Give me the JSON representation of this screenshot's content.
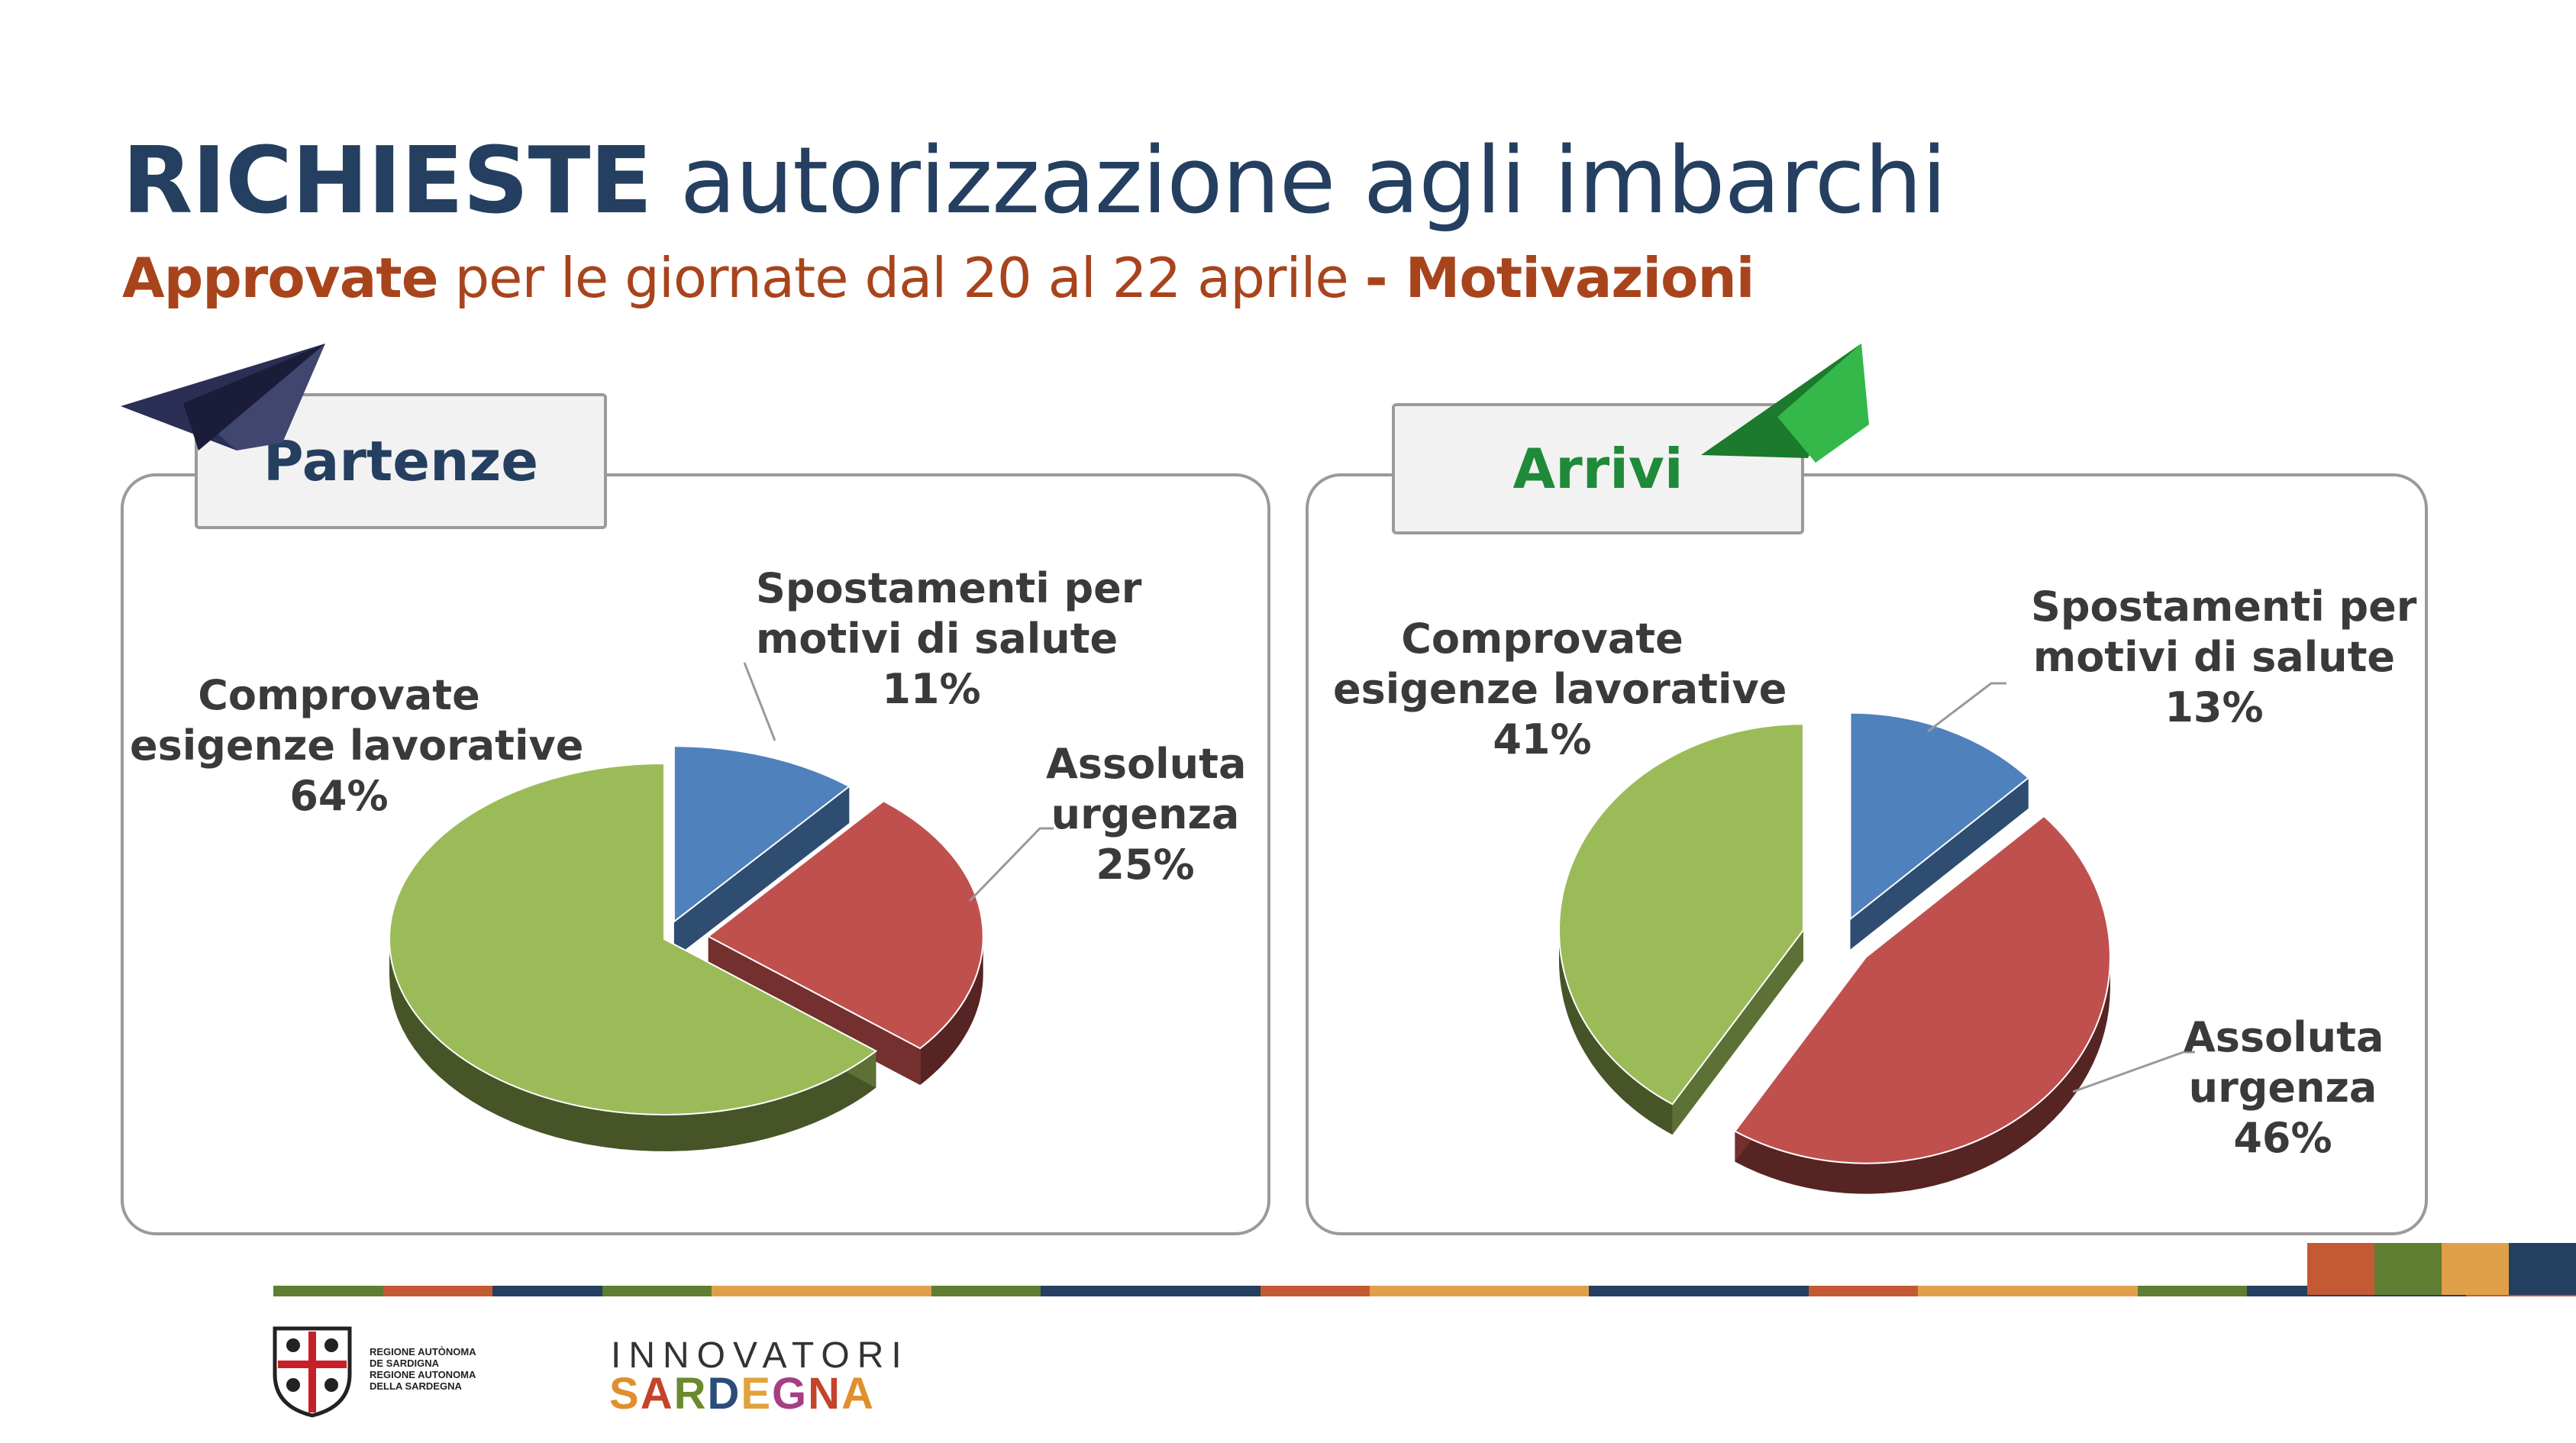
{
  "header": {
    "title_bold": "RICHIESTE",
    "title_rest": "autorizzazione agli imbarchi",
    "subtitle_bold1": "Approvate",
    "subtitle_mid": "per le giornate dal 20 al 22 aprile",
    "subtitle_bold2": "- Motivazioni"
  },
  "colors": {
    "title": "#243f60",
    "subtitle": "#a8441c",
    "blue": "#4f81bd",
    "red": "#c0504d",
    "green": "#9bbb59",
    "arrivi_green": "#1e8a3a"
  },
  "icons": {
    "left": "paper-plane-navy-icon",
    "right": "paper-plane-green-icon"
  },
  "chart_data": [
    {
      "type": "pie",
      "title": "Partenze",
      "categories": [
        "Spostamenti per motivi di salute",
        "Assoluta urgenza",
        "Comprovate esigenze lavorative"
      ],
      "values": [
        11,
        25,
        64
      ],
      "labels": [
        {
          "line1": "Spostamenti per",
          "line2": "motivi di salute",
          "pct": "11%"
        },
        {
          "line1": "Assoluta",
          "line2": "urgenza",
          "pct": "25%"
        },
        {
          "line1": "Comprovate",
          "line2": "esigenze lavorative",
          "pct": "64%"
        }
      ],
      "colors": [
        "#4f81bd",
        "#c0504d",
        "#9bbb59"
      ]
    },
    {
      "type": "pie",
      "title": "Arrivi",
      "categories": [
        "Spostamenti per motivi di salute",
        "Assoluta urgenza",
        "Comprovate esigenze lavorative"
      ],
      "values": [
        13,
        46,
        41
      ],
      "labels": [
        {
          "line1": "Spostamenti per",
          "line2": "motivi di salute",
          "pct": "13%"
        },
        {
          "line1": "Assoluta",
          "line2": "urgenza",
          "pct": "46%"
        },
        {
          "line1": "Comprovate",
          "line2": "esigenze lavorative",
          "pct": "41%"
        }
      ],
      "colors": [
        "#4f81bd",
        "#c0504d",
        "#9bbb59"
      ]
    }
  ],
  "footer": {
    "region_line1": "REGIONE AUTÒNOMA",
    "region_line2": "DE SARDIGNA",
    "region_line3": "REGIONE AUTONOMA",
    "region_line4": "DELLA SARDEGNA",
    "brand_top": "INNOVATORI",
    "brand_letters": [
      "S",
      "A",
      "R",
      "D",
      "E",
      "G",
      "N",
      "A"
    ]
  }
}
